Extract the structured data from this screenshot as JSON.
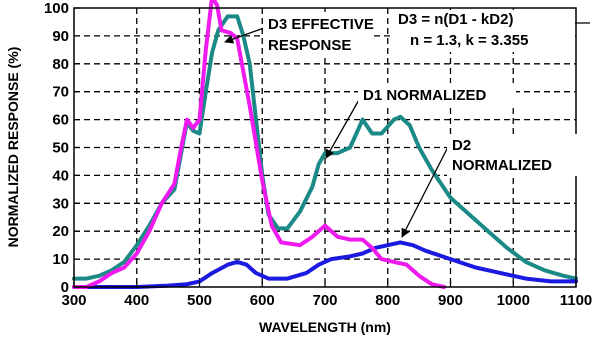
{
  "chart_data": {
    "type": "line",
    "title": "",
    "xlabel": "WAVELENGTH (nm)",
    "ylabel": "NORMALIZED RESPONSE (%)",
    "xlim": [
      300,
      1100
    ],
    "ylim": [
      0,
      100
    ],
    "x_ticks": [
      "300",
      "400",
      "500",
      "600",
      "700",
      "800",
      "900",
      "1000",
      "1100"
    ],
    "y_ticks": [
      "0",
      "10",
      "20",
      "30",
      "40",
      "50",
      "60",
      "70",
      "80",
      "90",
      "100"
    ],
    "grid": true,
    "annotations": {
      "d3": [
        "D3 EFFECTIVE",
        "RESPONSE"
      ],
      "formula": [
        "D3 = n(D1 - kD2)",
        "n = 1.3, k = 3.355"
      ],
      "d1": [
        "D1 NORMALIZED"
      ],
      "d2": [
        "D2",
        "NORMALIZED"
      ]
    },
    "series": [
      {
        "name": "D1 NORMALIZED",
        "color": "#1b8a86",
        "points": [
          [
            300,
            3
          ],
          [
            320,
            3
          ],
          [
            340,
            4
          ],
          [
            360,
            6
          ],
          [
            380,
            9
          ],
          [
            400,
            15
          ],
          [
            420,
            22
          ],
          [
            440,
            30
          ],
          [
            460,
            35
          ],
          [
            480,
            59
          ],
          [
            490,
            56
          ],
          [
            500,
            55
          ],
          [
            510,
            70
          ],
          [
            520,
            84
          ],
          [
            530,
            92
          ],
          [
            545,
            97
          ],
          [
            560,
            97
          ],
          [
            570,
            90
          ],
          [
            580,
            80
          ],
          [
            590,
            60
          ],
          [
            600,
            40
          ],
          [
            610,
            26
          ],
          [
            625,
            21
          ],
          [
            640,
            21
          ],
          [
            660,
            27
          ],
          [
            680,
            36
          ],
          [
            690,
            44
          ],
          [
            700,
            48
          ],
          [
            720,
            48
          ],
          [
            740,
            50
          ],
          [
            750,
            55
          ],
          [
            760,
            60
          ],
          [
            775,
            55
          ],
          [
            790,
            55
          ],
          [
            810,
            60
          ],
          [
            820,
            61
          ],
          [
            835,
            58
          ],
          [
            850,
            50
          ],
          [
            870,
            42
          ],
          [
            900,
            32
          ],
          [
            930,
            26
          ],
          [
            960,
            20
          ],
          [
            990,
            14
          ],
          [
            1020,
            9
          ],
          [
            1050,
            6
          ],
          [
            1080,
            4
          ],
          [
            1100,
            3
          ]
        ]
      },
      {
        "name": "D2 NORMALIZED",
        "color": "#1b1ae0",
        "points": [
          [
            300,
            0
          ],
          [
            350,
            0
          ],
          [
            400,
            0
          ],
          [
            450,
            0.5
          ],
          [
            480,
            1
          ],
          [
            500,
            2
          ],
          [
            520,
            5
          ],
          [
            545,
            8
          ],
          [
            560,
            9
          ],
          [
            575,
            8
          ],
          [
            590,
            5
          ],
          [
            610,
            3
          ],
          [
            640,
            3
          ],
          [
            670,
            5
          ],
          [
            690,
            8
          ],
          [
            710,
            10
          ],
          [
            740,
            11
          ],
          [
            760,
            12
          ],
          [
            780,
            14
          ],
          [
            800,
            15
          ],
          [
            820,
            16
          ],
          [
            840,
            15
          ],
          [
            860,
            13
          ],
          [
            900,
            10
          ],
          [
            940,
            7
          ],
          [
            980,
            5
          ],
          [
            1020,
            3
          ],
          [
            1060,
            2
          ],
          [
            1100,
            2
          ]
        ]
      },
      {
        "name": "D3 EFFECTIVE RESPONSE",
        "color": "#ee1aee",
        "points": [
          [
            300,
            0
          ],
          [
            310,
            0
          ],
          [
            320,
            0
          ],
          [
            340,
            2
          ],
          [
            360,
            5
          ],
          [
            380,
            7
          ],
          [
            400,
            12
          ],
          [
            420,
            20
          ],
          [
            440,
            30
          ],
          [
            460,
            37
          ],
          [
            470,
            49
          ],
          [
            480,
            60
          ],
          [
            490,
            57
          ],
          [
            500,
            60
          ],
          [
            510,
            85
          ],
          [
            520,
            104
          ],
          [
            528,
            101
          ],
          [
            535,
            92
          ],
          [
            550,
            91
          ],
          [
            560,
            89
          ],
          [
            580,
            65
          ],
          [
            600,
            38
          ],
          [
            615,
            22
          ],
          [
            630,
            16
          ],
          [
            660,
            15
          ],
          [
            680,
            18
          ],
          [
            700,
            22
          ],
          [
            720,
            18
          ],
          [
            740,
            17
          ],
          [
            760,
            17
          ],
          [
            775,
            14
          ],
          [
            790,
            10
          ],
          [
            810,
            9
          ],
          [
            830,
            8
          ],
          [
            850,
            4
          ],
          [
            870,
            1
          ],
          [
            890,
            0
          ]
        ]
      }
    ]
  }
}
